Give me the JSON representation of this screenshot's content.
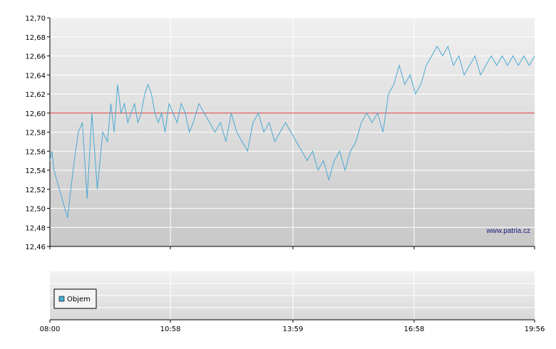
{
  "chart_data": [
    {
      "type": "line",
      "title": "",
      "xlabel": "",
      "ylabel": "",
      "ylim": [
        12.46,
        12.7
      ],
      "y_ticks": [
        "12,46",
        "12,48",
        "12,50",
        "12,52",
        "12,54",
        "12,56",
        "12,58",
        "12,60",
        "12,62",
        "12,64",
        "12,66",
        "12,68",
        "12,70"
      ],
      "x_ticks": [
        "08:00",
        "10:58",
        "13:59",
        "16:58",
        "19:56"
      ],
      "reference_line": 12.6,
      "grid": true,
      "watermark": "www.patria.cz",
      "colors": {
        "series": "#4ba8d3",
        "reference": "#d63b3b",
        "grid": "#ffffff",
        "bg_top": "#f0f0f0",
        "bg_bottom": "#c8c8c8"
      },
      "series": [
        {
          "name": "",
          "x": [
            "08:00",
            "08:03",
            "08:06",
            "08:10",
            "08:14",
            "08:18",
            "08:22",
            "08:26",
            "08:31",
            "08:36",
            "08:42",
            "08:48",
            "08:55",
            "09:02",
            "09:10",
            "09:18",
            "09:25",
            "09:30",
            "09:35",
            "09:40",
            "09:45",
            "09:50",
            "09:55",
            "10:00",
            "10:05",
            "10:10",
            "10:15",
            "10:20",
            "10:25",
            "10:30",
            "10:35",
            "10:40",
            "10:45",
            "10:50",
            "10:56",
            "11:02",
            "11:08",
            "11:14",
            "11:20",
            "11:26",
            "11:32",
            "11:40",
            "11:48",
            "11:56",
            "12:04",
            "12:12",
            "12:20",
            "12:28",
            "12:36",
            "12:44",
            "12:52",
            "13:00",
            "13:08",
            "13:16",
            "13:24",
            "13:32",
            "13:40",
            "13:48",
            "13:56",
            "14:04",
            "14:12",
            "14:20",
            "14:28",
            "14:36",
            "14:44",
            "14:52",
            "15:00",
            "15:08",
            "15:16",
            "15:24",
            "15:32",
            "15:40",
            "15:48",
            "15:56",
            "16:04",
            "16:12",
            "16:20",
            "16:28",
            "16:36",
            "16:44",
            "16:52",
            "17:00",
            "17:08",
            "17:16",
            "17:24",
            "17:32",
            "17:40",
            "17:48",
            "17:56",
            "18:04",
            "18:12",
            "18:20",
            "18:28",
            "18:36",
            "18:44",
            "18:52",
            "19:00",
            "19:08",
            "19:16",
            "19:24",
            "19:32",
            "19:40",
            "19:48",
            "19:56"
          ],
          "values": [
            12.55,
            12.56,
            12.54,
            12.53,
            12.52,
            12.51,
            12.5,
            12.49,
            12.52,
            12.55,
            12.58,
            12.59,
            12.51,
            12.6,
            12.52,
            12.58,
            12.57,
            12.61,
            12.58,
            12.63,
            12.6,
            12.61,
            12.59,
            12.6,
            12.61,
            12.59,
            12.6,
            12.62,
            12.63,
            12.62,
            12.6,
            12.59,
            12.6,
            12.58,
            12.61,
            12.6,
            12.59,
            12.61,
            12.6,
            12.58,
            12.59,
            12.61,
            12.6,
            12.59,
            12.58,
            12.59,
            12.57,
            12.6,
            12.58,
            12.57,
            12.56,
            12.59,
            12.6,
            12.58,
            12.59,
            12.57,
            12.58,
            12.59,
            12.58,
            12.57,
            12.56,
            12.55,
            12.56,
            12.54,
            12.55,
            12.53,
            12.55,
            12.56,
            12.54,
            12.56,
            12.57,
            12.59,
            12.6,
            12.59,
            12.6,
            12.58,
            12.62,
            12.63,
            12.65,
            12.63,
            12.64,
            12.62,
            12.63,
            12.65,
            12.66,
            12.67,
            12.66,
            12.67,
            12.65,
            12.66,
            12.64,
            12.65,
            12.66,
            12.64,
            12.65,
            12.66,
            12.65,
            12.66,
            12.65,
            12.66,
            12.65,
            12.66,
            12.65,
            12.66
          ]
        }
      ]
    },
    {
      "type": "bar",
      "title": "",
      "xlabel": "",
      "ylabel": "",
      "legend": {
        "entries": [
          "Objem"
        ],
        "placement": "left"
      },
      "x_ticks": [
        "08:00",
        "10:58",
        "13:59",
        "16:58",
        "19:56"
      ],
      "grid": true,
      "colors": {
        "legend_swatch": "#4ba8d3"
      },
      "series": [
        {
          "name": "Objem",
          "values": []
        }
      ]
    }
  ]
}
